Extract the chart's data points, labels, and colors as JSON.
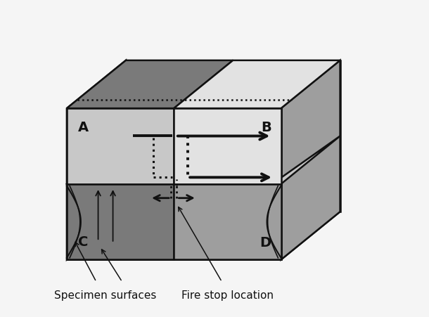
{
  "fig_bg": "#f5f5f5",
  "col_dark": "#7a7a7a",
  "col_mid": "#9e9e9e",
  "col_light": "#c8c8c8",
  "col_vlight": "#e2e2e2",
  "col_white": "#f0f0f0",
  "col_black": "#111111",
  "col_top": "#888888",
  "col_right_side": "#adadad",
  "label_A": "A",
  "label_B": "B",
  "label_C": "C",
  "label_D": "D",
  "label_specimen": "Specimen surfaces",
  "label_firestop": "Fire stop location",
  "label_fs": 11
}
